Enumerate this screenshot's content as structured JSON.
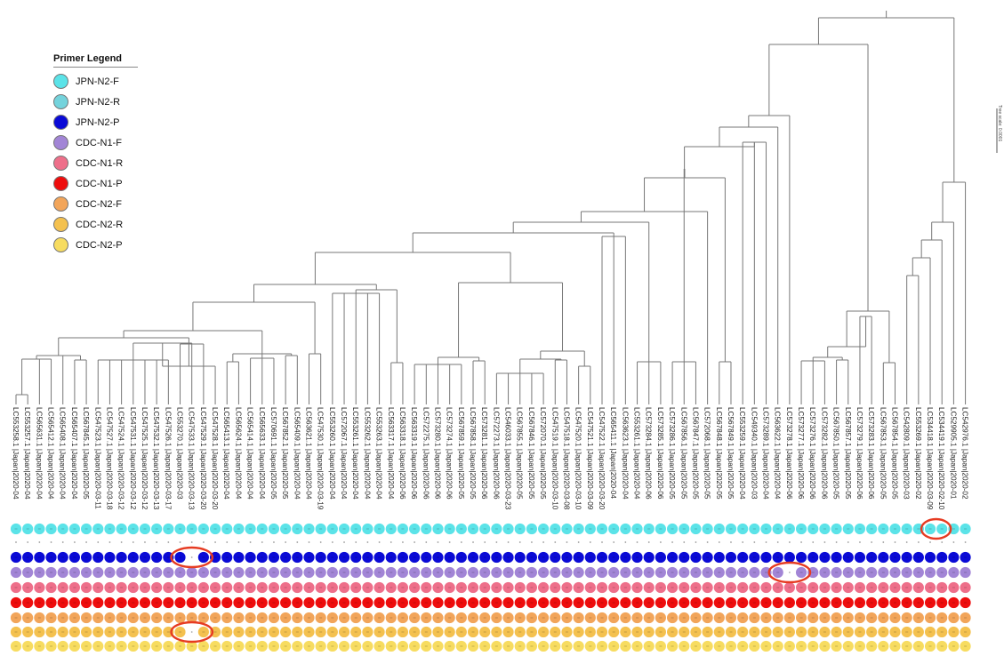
{
  "legend": {
    "title": "Primer Legend",
    "items": [
      {
        "label": "JPN-N2-F",
        "color": "#5be3e8"
      },
      {
        "label": "JPN-N2-R",
        "color": "#74d3dc"
      },
      {
        "label": "JPN-N2-P",
        "color": "#0a0ad6"
      },
      {
        "label": "CDC-N1-F",
        "color": "#a285d6"
      },
      {
        "label": "CDC-N1-R",
        "color": "#ee6f8a"
      },
      {
        "label": "CDC-N1-P",
        "color": "#ee0d0d"
      },
      {
        "label": "CDC-N2-F",
        "color": "#f2a55a"
      },
      {
        "label": "CDC-N2-R",
        "color": "#f4c14f"
      },
      {
        "label": "CDC-N2-P",
        "color": "#f7dc60"
      }
    ]
  },
  "scale_bar": {
    "label": "Tree scale: 0.0001"
  },
  "highlight_color": "#e63b22",
  "leaves": [
    "LC553258.1 |Japan|2020-04",
    "LC553257.1 |Japan|2020-04",
    "LC565631.1 |Japan|2020-04",
    "LC565412.1 |Japan|2020-04",
    "LC565408.1 |Japan|2020-04",
    "LC565407.1 |Japan|2020-04",
    "LC567845.1 |Japan|2020-05",
    "LC547523.1 |Japan|2020-03-11",
    "LC547527.1 |Japan|2020-03-18",
    "LC547524.1 |Japan|2020-03-12",
    "LC547531.1 |Japan|2020-03-12",
    "LC547525.1 |Japan|2020-03-12",
    "LC547532.1 |Japan|2020-03-13",
    "LC547526.1 |Japan|2020-03-17",
    "LC553270.1 |Japan|2020-03",
    "LC547533.1 |Japan|2020-03-13",
    "LC547529.1 |Japan|2020-03-20",
    "LC547528.1 |Japan|2020-03-20",
    "LC565413.1 |Japan|2020-04",
    "LC565624.1 |Japan|2020-04",
    "LC565414.1 |Japan|2020-04",
    "LC565633.1 |Japan|2020-04",
    "LC570691.1 |Japan|2020-05",
    "LC567852.1 |Japan|2020-05",
    "LC565409.1 |Japan|2020-04",
    "LC563621.1 |Japan|2020-04",
    "LC547530.1 |Japan|2020-03-19",
    "LC553260.1 |Japan|2020-04",
    "LC572067.1 |Japan|2020-04",
    "LC553261.1 |Japan|2020-04",
    "LC553262.1 |Japan|2020-04",
    "LC553263.1 |Japan|2020-04",
    "LC563317.1 |Japan|2020-04",
    "LC563318.1 |Japan|2020-06",
    "LC563319.1 |Japan|2020-06",
    "LC572275.1 |Japan|2020-06",
    "LC573280.1 |Japan|2020-06",
    "LC573274.1 |Japan|2020-06",
    "LC567859.1 |Japan|2020-05",
    "LC567858.1 |Japan|2020-05",
    "LC573281.1 |Japan|2020-06",
    "LC572273.1 |Japan|2020-06",
    "LC546033.1 |Japan|2020-03-23",
    "LC567855.1 |Japan|2020-05",
    "LC567846.1 |Japan|2020-05",
    "LC572070.1 |Japan|2020-05",
    "LC547519.1 |Japan|2020-03-10",
    "LC547518.1 |Japan|2020-03-08",
    "LC547520.1 |Japan|2020-03-10",
    "LC547521.1 |Japan|2020-03-09",
    "LC547522.1 |Japan|2020-03-20",
    "LC565411.1 |Japan|2020-04",
    "LC563623.1 |Japan|2020-04",
    "LC553261.1 |Japan|2020-04",
    "LC573284.1 |Japan|2020-06",
    "LC573285.1 |Japan|2020-06",
    "LC573286.1 |Japan|2020-05",
    "LC567856.1 |Japan|2020-05",
    "LC567847.1 |Japan|2020-05",
    "LC572068.1 |Japan|2020-05",
    "LC567848.1 |Japan|2020-05",
    "LC567849.1 |Japan|2020-05",
    "LC553259.1 |Japan|2020-04",
    "LC549340.1 |Japan|2020-03",
    "LC573289.1 |Japan|2020-04",
    "LC563622.1 |Japan|2020-04",
    "LC573278.1 |Japan|2020-06",
    "LC573277.1 |Japan|2020-06",
    "LC573276.1 |Japan|2020-06",
    "LC573282.1 |Japan|2020-06",
    "LC567850.1 |Japan|2020-05",
    "LC567857.1 |Japan|2020-05",
    "LC573279.1 |Japan|2020-06",
    "LC573283.1 |Japan|2020-06",
    "LC567853.1 |Japan|2020-05",
    "LC567854.1 |Japan|2020-05",
    "LC542809.1 |Japan|2020-03",
    "LC553269.1 |Japan|2020-02",
    "LC534418.1 |Japan|2020-03-09",
    "LC534419.1 |Japan|2020-02-10",
    "LC529905.1 |Japan|2020-01",
    "LC542976.1 |Japan|2020-02"
  ],
  "missing_dots": [
    {
      "row": 2,
      "leaves": [
        15
      ]
    },
    {
      "row": 3,
      "leaves": [
        66
      ]
    },
    {
      "row": 7,
      "leaves": [
        15
      ]
    }
  ],
  "highlights": [
    {
      "row": 0,
      "leaf_start": 78,
      "leaf_end": 79
    },
    {
      "row": 2,
      "leaf_start": 14,
      "leaf_end": 16
    },
    {
      "row": 3,
      "leaf_start": 65,
      "leaf_end": 67
    },
    {
      "row": 7,
      "leaf_start": 14,
      "leaf_end": 16
    }
  ]
}
